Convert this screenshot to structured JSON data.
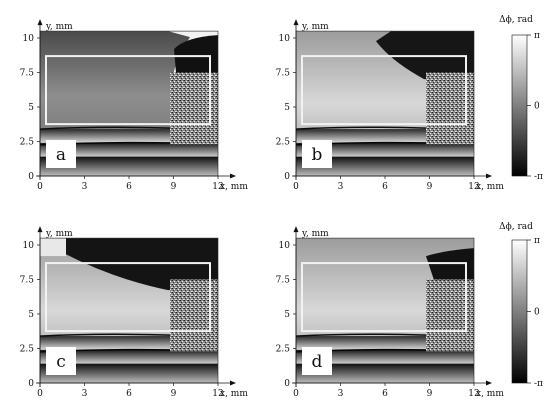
{
  "axes": {
    "y_label": "y, mm",
    "x_label": "x, mm",
    "x_ticks": [
      "0",
      "3",
      "6",
      "9",
      "12"
    ],
    "y_ticks": [
      "0",
      "2.5",
      "5",
      "7.5",
      "10"
    ]
  },
  "colorbar": {
    "label": "Δϕ, rad",
    "top": "π",
    "middle": "0",
    "bottom": "-π"
  },
  "panels": [
    {
      "letter": "a"
    },
    {
      "letter": "b"
    },
    {
      "letter": "c"
    },
    {
      "letter": "d"
    }
  ],
  "colors": {
    "frame": "#111111",
    "roi_box": "#f2f2f2",
    "dark_phase": "#0a0a0a",
    "light_phase": "#e6e6e6"
  }
}
